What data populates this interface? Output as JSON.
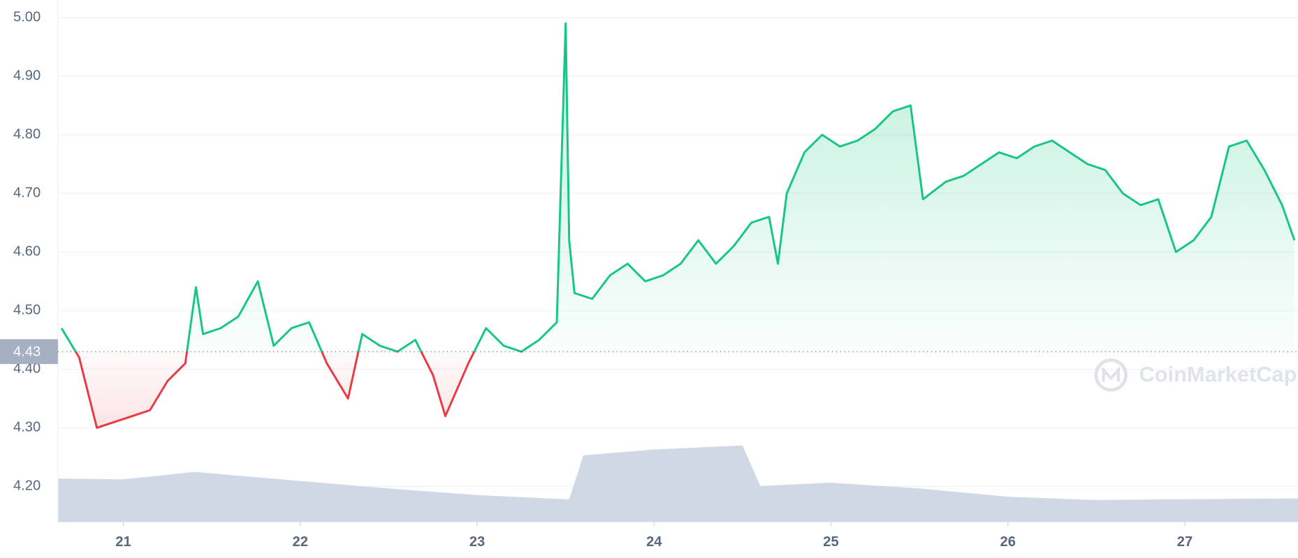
{
  "chart_data": {
    "type": "line",
    "x": [
      20.65,
      20.75,
      20.85,
      20.95,
      21.05,
      21.15,
      21.25,
      21.35,
      21.41,
      21.45,
      21.55,
      21.65,
      21.76,
      21.85,
      21.95,
      22.05,
      22.15,
      22.27,
      22.35,
      22.45,
      22.55,
      22.65,
      22.75,
      22.82,
      22.95,
      23.05,
      23.15,
      23.25,
      23.35,
      23.45,
      23.5,
      23.52,
      23.55,
      23.65,
      23.75,
      23.85,
      23.95,
      24.05,
      24.15,
      24.25,
      24.35,
      24.45,
      24.55,
      24.65,
      24.7,
      24.75,
      24.85,
      24.95,
      25.05,
      25.15,
      25.25,
      25.35,
      25.45,
      25.52,
      25.65,
      25.75,
      25.85,
      25.95,
      26.05,
      26.15,
      26.25,
      26.35,
      26.45,
      26.55,
      26.65,
      26.75,
      26.85,
      26.95,
      27.05,
      27.15,
      27.25,
      27.35,
      27.45,
      27.55,
      27.62
    ],
    "values": [
      4.47,
      4.42,
      4.3,
      4.31,
      4.32,
      4.33,
      4.38,
      4.41,
      4.54,
      4.46,
      4.47,
      4.49,
      4.55,
      4.44,
      4.47,
      4.48,
      4.41,
      4.35,
      4.46,
      4.44,
      4.43,
      4.45,
      4.39,
      4.32,
      4.41,
      4.47,
      4.44,
      4.43,
      4.45,
      4.48,
      4.99,
      4.62,
      4.53,
      4.52,
      4.56,
      4.58,
      4.55,
      4.56,
      4.58,
      4.62,
      4.58,
      4.61,
      4.65,
      4.66,
      4.58,
      4.7,
      4.77,
      4.8,
      4.78,
      4.79,
      4.81,
      4.84,
      4.85,
      4.69,
      4.72,
      4.73,
      4.75,
      4.77,
      4.76,
      4.78,
      4.79,
      4.77,
      4.75,
      4.74,
      4.7,
      4.68,
      4.69,
      4.6,
      4.62,
      4.66,
      4.78,
      4.79,
      4.74,
      4.68,
      4.62
    ],
    "baseline": 4.43,
    "up_color": "#16c784",
    "down_color": "#ea3943",
    "xlim": [
      20.63,
      27.64
    ],
    "xticks": [
      21,
      22,
      23,
      24,
      25,
      26,
      27
    ],
    "ylim": [
      4.14,
      5.03
    ],
    "yticks": [
      {
        "value": 4.2,
        "label": "4.20"
      },
      {
        "value": 4.3,
        "label": "4.30"
      },
      {
        "value": 4.4,
        "label": "4.40"
      },
      {
        "value": 4.5,
        "label": "4.50"
      },
      {
        "value": 4.6,
        "label": "4.60"
      },
      {
        "value": 4.7,
        "label": "4.70"
      },
      {
        "value": 4.8,
        "label": "4.80"
      },
      {
        "value": 4.9,
        "label": "4.90"
      },
      {
        "value": 5.0,
        "label": "5.00"
      }
    ],
    "grid": true,
    "volume": {
      "color": "#cfd6e4",
      "y2lim": [
        0,
        100
      ],
      "x": [
        20.63,
        21.0,
        21.4,
        22.0,
        22.5,
        23.0,
        23.5,
        23.52,
        23.6,
        24.0,
        24.5,
        24.6,
        25.0,
        25.5,
        26.0,
        26.5,
        27.0,
        27.64
      ],
      "values": [
        52,
        51,
        60,
        49,
        40,
        32,
        27,
        27,
        80,
        87,
        92,
        43,
        47,
        40,
        30,
        26,
        27,
        28
      ]
    },
    "watermark": "CoinMarketCap"
  }
}
